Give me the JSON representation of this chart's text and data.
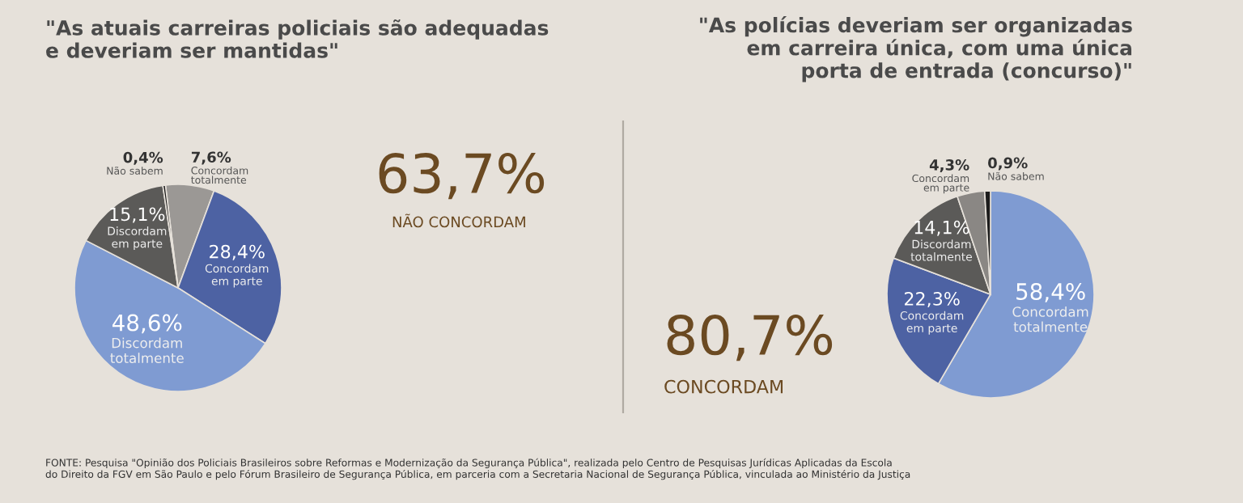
{
  "chart_data": [
    {
      "type": "pie",
      "title": "\"As atuais carreiras policiais são adequadas\ne deveriam ser mantidas\"",
      "categories": [
        "Concordam\ntotalmente",
        "Concordam\nem parte",
        "Discordam\ntotalmente",
        "Discordam\nem parte",
        "Não sabem"
      ],
      "values": [
        7.6,
        28.4,
        48.6,
        15.1,
        0.4
      ],
      "value_labels": [
        "7,6%",
        "28,4%",
        "48,6%",
        "15,1%",
        "0,4%"
      ],
      "colors": [
        "#9b9895",
        "#4d62a3",
        "#7f9bd2",
        "#5b5a58",
        "#1c1c1c"
      ],
      "annotations": [
        "63,7%",
        "NÃO CONCORDAM"
      ]
    },
    {
      "type": "pie",
      "title": "\"As polícias deveriam ser organizadas\nem carreira única, com uma única\nporta de entrada (concurso)\"",
      "categories": [
        "Concordam\ntotalmente",
        "Concordam\nem parte",
        "Discordam\ntotalmente",
        "Concordam\nem parte",
        "Não sabem"
      ],
      "values": [
        58.4,
        22.3,
        14.1,
        4.3,
        0.9
      ],
      "value_labels": [
        "58,4%",
        "22,3%",
        "14,1%",
        "4,3%",
        "0,9%"
      ],
      "colors": [
        "#7f9bd2",
        "#4d62a3",
        "#5b5a58",
        "#8a8784",
        "#1c1c1c"
      ],
      "annotations": [
        "80,7%",
        "CONCORDAM",
        "FONTE: Pesquisa \"Opinião dos Policiais Brasileiros sobre Reformas e Modernização da Segurança Pública\", realizada pelo Centro de Pesquisas Jurídicas Aplicadas da Escola\ndo Direito da FGV em São Paulo e pelo Fórum Brasileiro de Segurança Pública, em parceria com a Secretaria Nacional de Segurança Pública, vinculada ao Ministério da Justiça"
      ]
    }
  ]
}
